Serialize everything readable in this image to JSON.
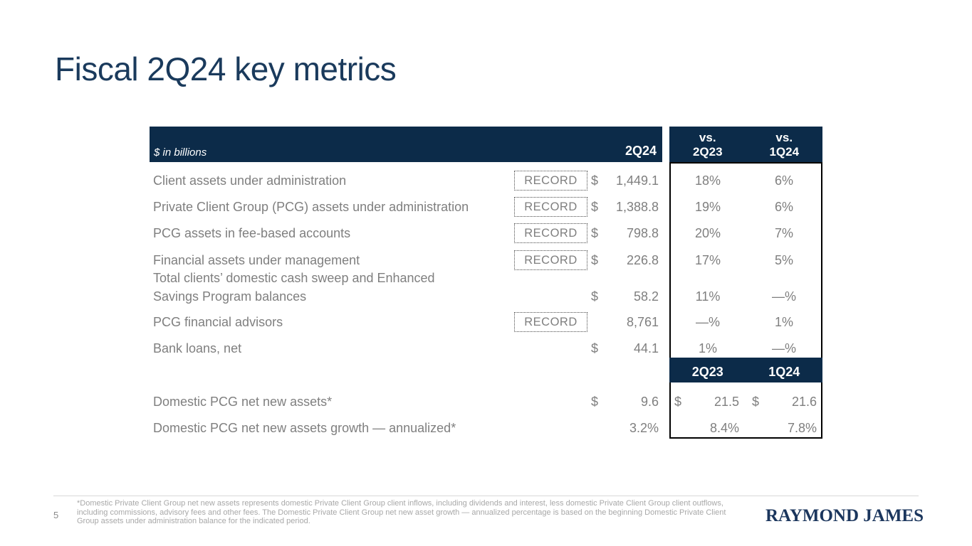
{
  "colors": {
    "navy_band": "#0C2B49",
    "title_navy": "#1A3A5C",
    "text_gray": "#7F7F7F",
    "footnote_gray": "#A8A8A8",
    "rule_gray": "#D9D9D9",
    "logo_navy": "#1B365D",
    "record_border": "#4A4A4A",
    "box_border": "#000000"
  },
  "slide": {
    "title": "Fiscal 2Q24 key metrics",
    "page_number": "5",
    "logo_text": "RAYMOND JAMES",
    "footnote": "*Domestic Private Client Group net new assets represents domestic Private Client Group client inflows, including dividends and interest, less domestic Private Client Group client outflows, including commissions, advisory fees and other fees. The Domestic Private Client Group net new asset growth — annualized percentage is based on the beginning Domestic Private Client Group assets under administration balance for the indicated period."
  },
  "table": {
    "left_header": {
      "caption": "$ in billions",
      "col": "2Q24"
    },
    "right_header": {
      "vs1": "vs.",
      "col1": "2Q23",
      "vs2": "vs.",
      "col2": "1Q24"
    },
    "second_header": {
      "col1": "2Q23",
      "col2": "1Q24"
    },
    "rows": [
      {
        "label": "Client assets under administration",
        "record": "RECORD",
        "cur": "$",
        "val": "1,449.1",
        "p1": "18%",
        "p2": "6%"
      },
      {
        "label": "Private Client Group (PCG) assets under administration",
        "record": "RECORD",
        "cur": "$",
        "val": "1,388.8",
        "p1": "19%",
        "p2": "6%"
      },
      {
        "label": "PCG assets in fee-based accounts",
        "record": "RECORD",
        "cur": "$",
        "val": "798.8",
        "p1": "20%",
        "p2": "7%"
      },
      {
        "label": "Financial assets under management",
        "record": "RECORD",
        "cur": "$",
        "val": "226.8",
        "p1": "17%",
        "p2": "5%"
      },
      {
        "label": "Total clients’ domestic cash sweep and Enhanced\n Savings Program balances",
        "record": "",
        "cur": "$",
        "val": "58.2",
        "p1": "11%",
        "p2": "—%"
      },
      {
        "label": "PCG financial advisors",
        "record": "RECORD",
        "cur": "",
        "val": "8,761",
        "p1": "—%",
        "p2": "1%"
      },
      {
        "label": "Bank loans, net",
        "record": "",
        "cur": "$",
        "val": "44.1",
        "p1": "1%",
        "p2": "—%"
      }
    ],
    "bottom_rows": [
      {
        "label": "Domestic PCG net new assets*",
        "cur": "$",
        "val": "9.6",
        "c1cur": "$",
        "c1": "21.5",
        "c2cur": "$",
        "c2": "21.6"
      },
      {
        "label": "Domestic PCG net new assets growth — annualized*",
        "cur": "",
        "val": "3.2%",
        "c1cur": "",
        "c1": "8.4%",
        "c2cur": "",
        "c2": "7.8%"
      }
    ]
  }
}
